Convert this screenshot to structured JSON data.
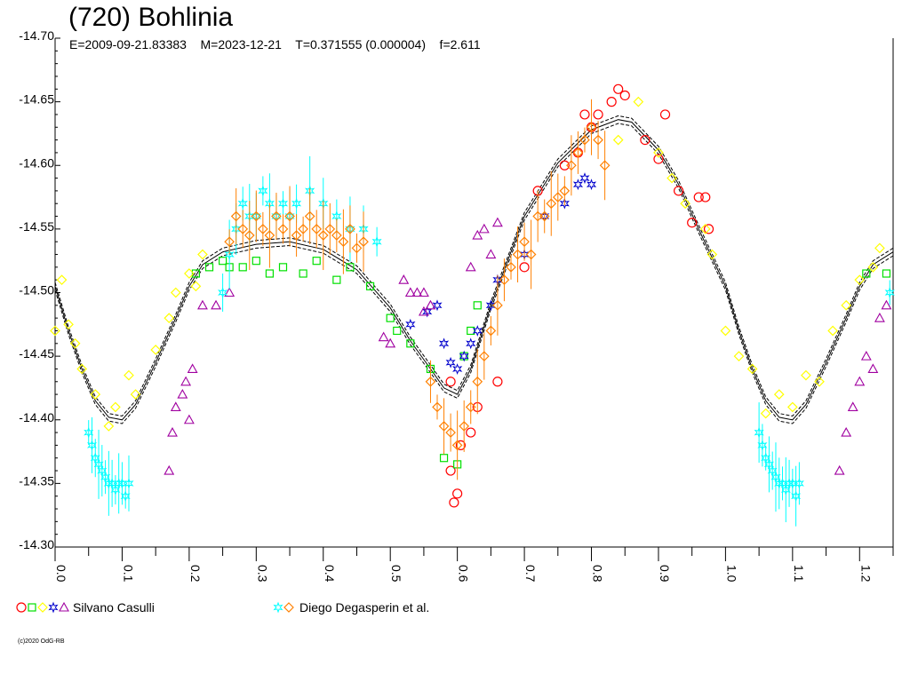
{
  "chart_data": {
    "type": "scatter",
    "title": "(720) Bohlinia",
    "subtitle": "E=2009-09-21.83383    M=2023-12-21    T=0.371555 (0.000004)    f=2.611",
    "ylim": [
      -14.7,
      -14.3
    ],
    "y_reversed": true,
    "xlim": [
      0.0,
      1.25
    ],
    "y_ticks": [
      "-14.70",
      "-14.65",
      "-14.60",
      "-14.55",
      "-14.50",
      "-14.45",
      "-14.40",
      "-14.35",
      "-14.30"
    ],
    "x_ticks": [
      "0.0",
      "0.1",
      "0.2",
      "0.3",
      "0.4",
      "0.5",
      "0.6",
      "0.7",
      "0.8",
      "0.9",
      "1.0",
      "1.1",
      "1.2"
    ],
    "fit_curve": {
      "color": "#000000",
      "points": [
        [
          0.0,
          -14.505
        ],
        [
          0.02,
          -14.47
        ],
        [
          0.04,
          -14.44
        ],
        [
          0.06,
          -14.415
        ],
        [
          0.08,
          -14.402
        ],
        [
          0.1,
          -14.4
        ],
        [
          0.12,
          -14.412
        ],
        [
          0.15,
          -14.445
        ],
        [
          0.18,
          -14.48
        ],
        [
          0.2,
          -14.505
        ],
        [
          0.22,
          -14.522
        ],
        [
          0.25,
          -14.532
        ],
        [
          0.3,
          -14.538
        ],
        [
          0.35,
          -14.54
        ],
        [
          0.4,
          -14.534
        ],
        [
          0.45,
          -14.518
        ],
        [
          0.5,
          -14.488
        ],
        [
          0.53,
          -14.462
        ],
        [
          0.56,
          -14.44
        ],
        [
          0.58,
          -14.425
        ],
        [
          0.6,
          -14.42
        ],
        [
          0.62,
          -14.44
        ],
        [
          0.65,
          -14.49
        ],
        [
          0.7,
          -14.56
        ],
        [
          0.75,
          -14.602
        ],
        [
          0.8,
          -14.628
        ],
        [
          0.84,
          -14.636
        ],
        [
          0.86,
          -14.634
        ],
        [
          0.9,
          -14.612
        ],
        [
          0.93,
          -14.585
        ],
        [
          0.96,
          -14.55
        ],
        [
          1.0,
          -14.505
        ],
        [
          1.02,
          -14.47
        ],
        [
          1.04,
          -14.44
        ],
        [
          1.06,
          -14.415
        ],
        [
          1.08,
          -14.402
        ],
        [
          1.1,
          -14.4
        ],
        [
          1.12,
          -14.412
        ],
        [
          1.15,
          -14.445
        ],
        [
          1.18,
          -14.48
        ],
        [
          1.2,
          -14.505
        ],
        [
          1.22,
          -14.522
        ],
        [
          1.25,
          -14.532
        ]
      ]
    },
    "series": [
      {
        "observer": "Silvano Casulli",
        "marker": "circle",
        "color": "#ff0000",
        "points": [
          [
            0.59,
            -14.36
          ],
          [
            0.595,
            -14.335
          ],
          [
            0.6,
            -14.342
          ],
          [
            0.605,
            -14.38
          ],
          [
            0.63,
            -14.41
          ],
          [
            0.66,
            -14.43
          ],
          [
            0.7,
            -14.52
          ],
          [
            0.72,
            -14.58
          ],
          [
            0.76,
            -14.6
          ],
          [
            0.78,
            -14.61
          ],
          [
            0.79,
            -14.64
          ],
          [
            0.8,
            -14.63
          ],
          [
            0.81,
            -14.64
          ],
          [
            0.83,
            -14.65
          ],
          [
            0.84,
            -14.66
          ],
          [
            0.85,
            -14.655
          ],
          [
            0.88,
            -14.62
          ],
          [
            0.9,
            -14.605
          ],
          [
            0.91,
            -14.64
          ],
          [
            0.93,
            -14.58
          ],
          [
            0.95,
            -14.555
          ],
          [
            0.96,
            -14.575
          ],
          [
            0.97,
            -14.575
          ],
          [
            0.975,
            -14.55
          ],
          [
            0.59,
            -14.43
          ],
          [
            0.62,
            -14.39
          ]
        ]
      },
      {
        "observer": "Silvano Casulli",
        "marker": "square",
        "color": "#00e000",
        "points": [
          [
            0.25,
            -14.525
          ],
          [
            0.26,
            -14.52
          ],
          [
            0.28,
            -14.52
          ],
          [
            0.3,
            -14.525
          ],
          [
            0.32,
            -14.515
          ],
          [
            0.34,
            -14.52
          ],
          [
            0.37,
            -14.515
          ],
          [
            0.39,
            -14.525
          ],
          [
            0.42,
            -14.51
          ],
          [
            0.44,
            -14.52
          ],
          [
            0.47,
            -14.505
          ],
          [
            0.5,
            -14.48
          ],
          [
            0.51,
            -14.47
          ],
          [
            0.53,
            -14.46
          ],
          [
            0.56,
            -14.44
          ],
          [
            0.58,
            -14.37
          ],
          [
            0.6,
            -14.365
          ],
          [
            0.61,
            -14.45
          ],
          [
            0.62,
            -14.47
          ],
          [
            0.63,
            -14.49
          ],
          [
            0.21,
            -14.515
          ],
          [
            0.23,
            -14.52
          ],
          [
            1.24,
            -14.515
          ],
          [
            1.21,
            -14.515
          ]
        ]
      },
      {
        "observer": "Silvano Casulli",
        "marker": "diamond",
        "color": "#ffff00",
        "points": [
          [
            0.0,
            -14.47
          ],
          [
            0.01,
            -14.51
          ],
          [
            0.02,
            -14.475
          ],
          [
            0.03,
            -14.46
          ],
          [
            0.04,
            -14.44
          ],
          [
            0.06,
            -14.42
          ],
          [
            0.08,
            -14.395
          ],
          [
            0.09,
            -14.41
          ],
          [
            0.11,
            -14.435
          ],
          [
            0.12,
            -14.42
          ],
          [
            0.15,
            -14.455
          ],
          [
            0.17,
            -14.48
          ],
          [
            0.18,
            -14.5
          ],
          [
            0.2,
            -14.515
          ],
          [
            0.21,
            -14.505
          ],
          [
            0.22,
            -14.53
          ],
          [
            0.84,
            -14.62
          ],
          [
            0.87,
            -14.65
          ],
          [
            0.9,
            -14.61
          ],
          [
            0.92,
            -14.59
          ],
          [
            0.94,
            -14.57
          ],
          [
            0.97,
            -14.55
          ],
          [
            0.98,
            -14.53
          ],
          [
            1.0,
            -14.47
          ],
          [
            1.02,
            -14.45
          ],
          [
            1.04,
            -14.44
          ],
          [
            1.06,
            -14.405
          ],
          [
            1.08,
            -14.42
          ],
          [
            1.1,
            -14.41
          ],
          [
            1.12,
            -14.435
          ],
          [
            1.14,
            -14.43
          ],
          [
            1.16,
            -14.47
          ],
          [
            1.18,
            -14.49
          ],
          [
            1.2,
            -14.51
          ],
          [
            1.22,
            -14.52
          ],
          [
            1.23,
            -14.535
          ]
        ]
      },
      {
        "observer": "Silvano Casulli",
        "marker": "star",
        "color": "#0000cc",
        "points": [
          [
            0.53,
            -14.475
          ],
          [
            0.555,
            -14.485
          ],
          [
            0.57,
            -14.49
          ],
          [
            0.58,
            -14.46
          ],
          [
            0.59,
            -14.445
          ],
          [
            0.6,
            -14.44
          ],
          [
            0.61,
            -14.45
          ],
          [
            0.62,
            -14.46
          ],
          [
            0.63,
            -14.47
          ],
          [
            0.65,
            -14.49
          ],
          [
            0.66,
            -14.51
          ],
          [
            0.7,
            -14.53
          ],
          [
            0.73,
            -14.56
          ],
          [
            0.76,
            -14.57
          ],
          [
            0.78,
            -14.585
          ],
          [
            0.79,
            -14.59
          ],
          [
            0.8,
            -14.585
          ]
        ]
      },
      {
        "observer": "Silvano Casulli",
        "marker": "triangle",
        "color": "#a000a0",
        "points": [
          [
            0.17,
            -14.36
          ],
          [
            0.175,
            -14.39
          ],
          [
            0.18,
            -14.41
          ],
          [
            0.19,
            -14.42
          ],
          [
            0.195,
            -14.43
          ],
          [
            0.2,
            -14.4
          ],
          [
            0.205,
            -14.44
          ],
          [
            0.22,
            -14.49
          ],
          [
            0.24,
            -14.49
          ],
          [
            0.26,
            -14.5
          ],
          [
            0.52,
            -14.51
          ],
          [
            0.53,
            -14.5
          ],
          [
            0.54,
            -14.5
          ],
          [
            0.55,
            -14.5
          ],
          [
            0.56,
            -14.49
          ],
          [
            0.63,
            -14.545
          ],
          [
            0.64,
            -14.55
          ],
          [
            0.65,
            -14.53
          ],
          [
            0.66,
            -14.555
          ],
          [
            0.62,
            -14.52
          ],
          [
            0.5,
            -14.46
          ],
          [
            0.49,
            -14.465
          ],
          [
            1.17,
            -14.36
          ],
          [
            1.18,
            -14.39
          ],
          [
            1.19,
            -14.41
          ],
          [
            1.2,
            -14.43
          ],
          [
            1.21,
            -14.45
          ],
          [
            1.22,
            -14.44
          ],
          [
            1.24,
            -14.49
          ],
          [
            1.23,
            -14.48
          ],
          [
            0.55,
            -14.485
          ]
        ]
      },
      {
        "observer": "Diego Degasperin et al.",
        "marker": "star",
        "color": "#00ffff",
        "errorbars": true,
        "points": [
          [
            0.05,
            -14.39
          ],
          [
            0.055,
            -14.38
          ],
          [
            0.06,
            -14.37
          ],
          [
            0.065,
            -14.365
          ],
          [
            0.07,
            -14.36
          ],
          [
            0.075,
            -14.355
          ],
          [
            0.08,
            -14.35
          ],
          [
            0.085,
            -14.35
          ],
          [
            0.09,
            -14.345
          ],
          [
            0.095,
            -14.35
          ],
          [
            0.1,
            -14.35
          ],
          [
            0.105,
            -14.34
          ],
          [
            0.11,
            -14.35
          ],
          [
            0.25,
            -14.5
          ],
          [
            0.26,
            -14.53
          ],
          [
            0.27,
            -14.55
          ],
          [
            0.28,
            -14.57
          ],
          [
            0.29,
            -14.56
          ],
          [
            0.3,
            -14.56
          ],
          [
            0.31,
            -14.58
          ],
          [
            0.32,
            -14.57
          ],
          [
            0.33,
            -14.56
          ],
          [
            0.34,
            -14.57
          ],
          [
            0.35,
            -14.56
          ],
          [
            0.36,
            -14.57
          ],
          [
            0.38,
            -14.58
          ],
          [
            0.4,
            -14.57
          ],
          [
            0.42,
            -14.56
          ],
          [
            0.44,
            -14.55
          ],
          [
            0.46,
            -14.55
          ],
          [
            0.48,
            -14.54
          ],
          [
            1.05,
            -14.39
          ],
          [
            1.055,
            -14.38
          ],
          [
            1.06,
            -14.37
          ],
          [
            1.065,
            -14.365
          ],
          [
            1.07,
            -14.36
          ],
          [
            1.075,
            -14.355
          ],
          [
            1.08,
            -14.35
          ],
          [
            1.085,
            -14.35
          ],
          [
            1.09,
            -14.345
          ],
          [
            1.095,
            -14.35
          ],
          [
            1.1,
            -14.35
          ],
          [
            1.105,
            -14.34
          ],
          [
            1.11,
            -14.35
          ],
          [
            1.245,
            -14.5
          ]
        ]
      },
      {
        "observer": "Diego Degasperin et al.",
        "marker": "diamond",
        "color": "#ff8000",
        "errorbars": true,
        "points": [
          [
            0.26,
            -14.54
          ],
          [
            0.27,
            -14.56
          ],
          [
            0.28,
            -14.55
          ],
          [
            0.29,
            -14.545
          ],
          [
            0.3,
            -14.56
          ],
          [
            0.31,
            -14.55
          ],
          [
            0.32,
            -14.545
          ],
          [
            0.33,
            -14.56
          ],
          [
            0.34,
            -14.55
          ],
          [
            0.35,
            -14.56
          ],
          [
            0.36,
            -14.545
          ],
          [
            0.37,
            -14.55
          ],
          [
            0.38,
            -14.56
          ],
          [
            0.39,
            -14.55
          ],
          [
            0.4,
            -14.545
          ],
          [
            0.41,
            -14.55
          ],
          [
            0.42,
            -14.545
          ],
          [
            0.43,
            -14.54
          ],
          [
            0.44,
            -14.55
          ],
          [
            0.45,
            -14.535
          ],
          [
            0.46,
            -14.54
          ],
          [
            0.56,
            -14.43
          ],
          [
            0.57,
            -14.41
          ],
          [
            0.58,
            -14.395
          ],
          [
            0.59,
            -14.39
          ],
          [
            0.6,
            -14.38
          ],
          [
            0.61,
            -14.395
          ],
          [
            0.62,
            -14.41
          ],
          [
            0.63,
            -14.43
          ],
          [
            0.64,
            -14.45
          ],
          [
            0.65,
            -14.47
          ],
          [
            0.66,
            -14.49
          ],
          [
            0.67,
            -14.51
          ],
          [
            0.68,
            -14.52
          ],
          [
            0.69,
            -14.53
          ],
          [
            0.7,
            -14.54
          ],
          [
            0.71,
            -14.53
          ],
          [
            0.72,
            -14.56
          ],
          [
            0.73,
            -14.56
          ],
          [
            0.74,
            -14.57
          ],
          [
            0.75,
            -14.575
          ],
          [
            0.76,
            -14.58
          ],
          [
            0.77,
            -14.6
          ],
          [
            0.78,
            -14.61
          ],
          [
            0.79,
            -14.62
          ],
          [
            0.8,
            -14.63
          ],
          [
            0.81,
            -14.62
          ],
          [
            0.82,
            -14.6
          ]
        ]
      }
    ],
    "legend": [
      {
        "label": "Silvano Casulli",
        "markers": [
          "circle",
          "square",
          "diamond",
          "star",
          "triangle"
        ],
        "colors": [
          "#ff0000",
          "#00e000",
          "#ffff00",
          "#0000cc",
          "#a000a0"
        ]
      },
      {
        "label": "Diego Degasperin et al.",
        "markers": [
          "star",
          "diamond"
        ],
        "colors": [
          "#00ffff",
          "#ff8000"
        ]
      }
    ]
  },
  "credit": "(c)2020 OdG-RB"
}
